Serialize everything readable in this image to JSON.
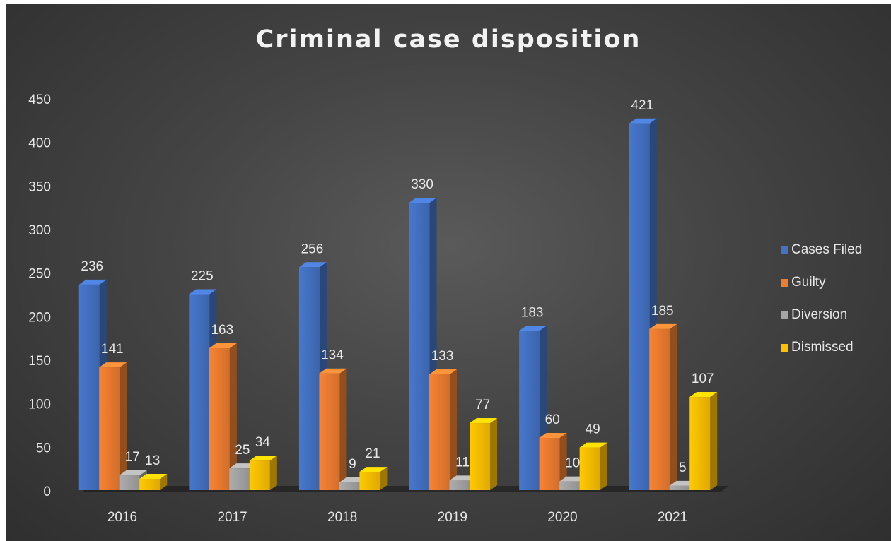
{
  "chart_data": {
    "type": "bar",
    "title": "Criminal case disposition",
    "xlabel": "",
    "ylabel": "",
    "categories": [
      "2016",
      "2017",
      "2018",
      "2019",
      "2020",
      "2021"
    ],
    "ylim": [
      0,
      450
    ],
    "yticks": [
      "0",
      "50",
      "100",
      "150",
      "200",
      "250",
      "300",
      "350",
      "400",
      "450"
    ],
    "grid": false,
    "legend_position": "right",
    "series": [
      {
        "name": "Cases Filed",
        "color": "#4472c4",
        "values": [
          236,
          225,
          256,
          330,
          183,
          421
        ]
      },
      {
        "name": "Guilty",
        "color": "#ed7d31",
        "values": [
          141,
          163,
          134,
          133,
          60,
          185
        ]
      },
      {
        "name": "Diversion",
        "color": "#a5a5a5",
        "values": [
          17,
          25,
          9,
          11,
          10,
          5
        ]
      },
      {
        "name": "Dismissed",
        "color": "#ffc000",
        "values": [
          13,
          34,
          21,
          77,
          49,
          107
        ]
      }
    ]
  }
}
